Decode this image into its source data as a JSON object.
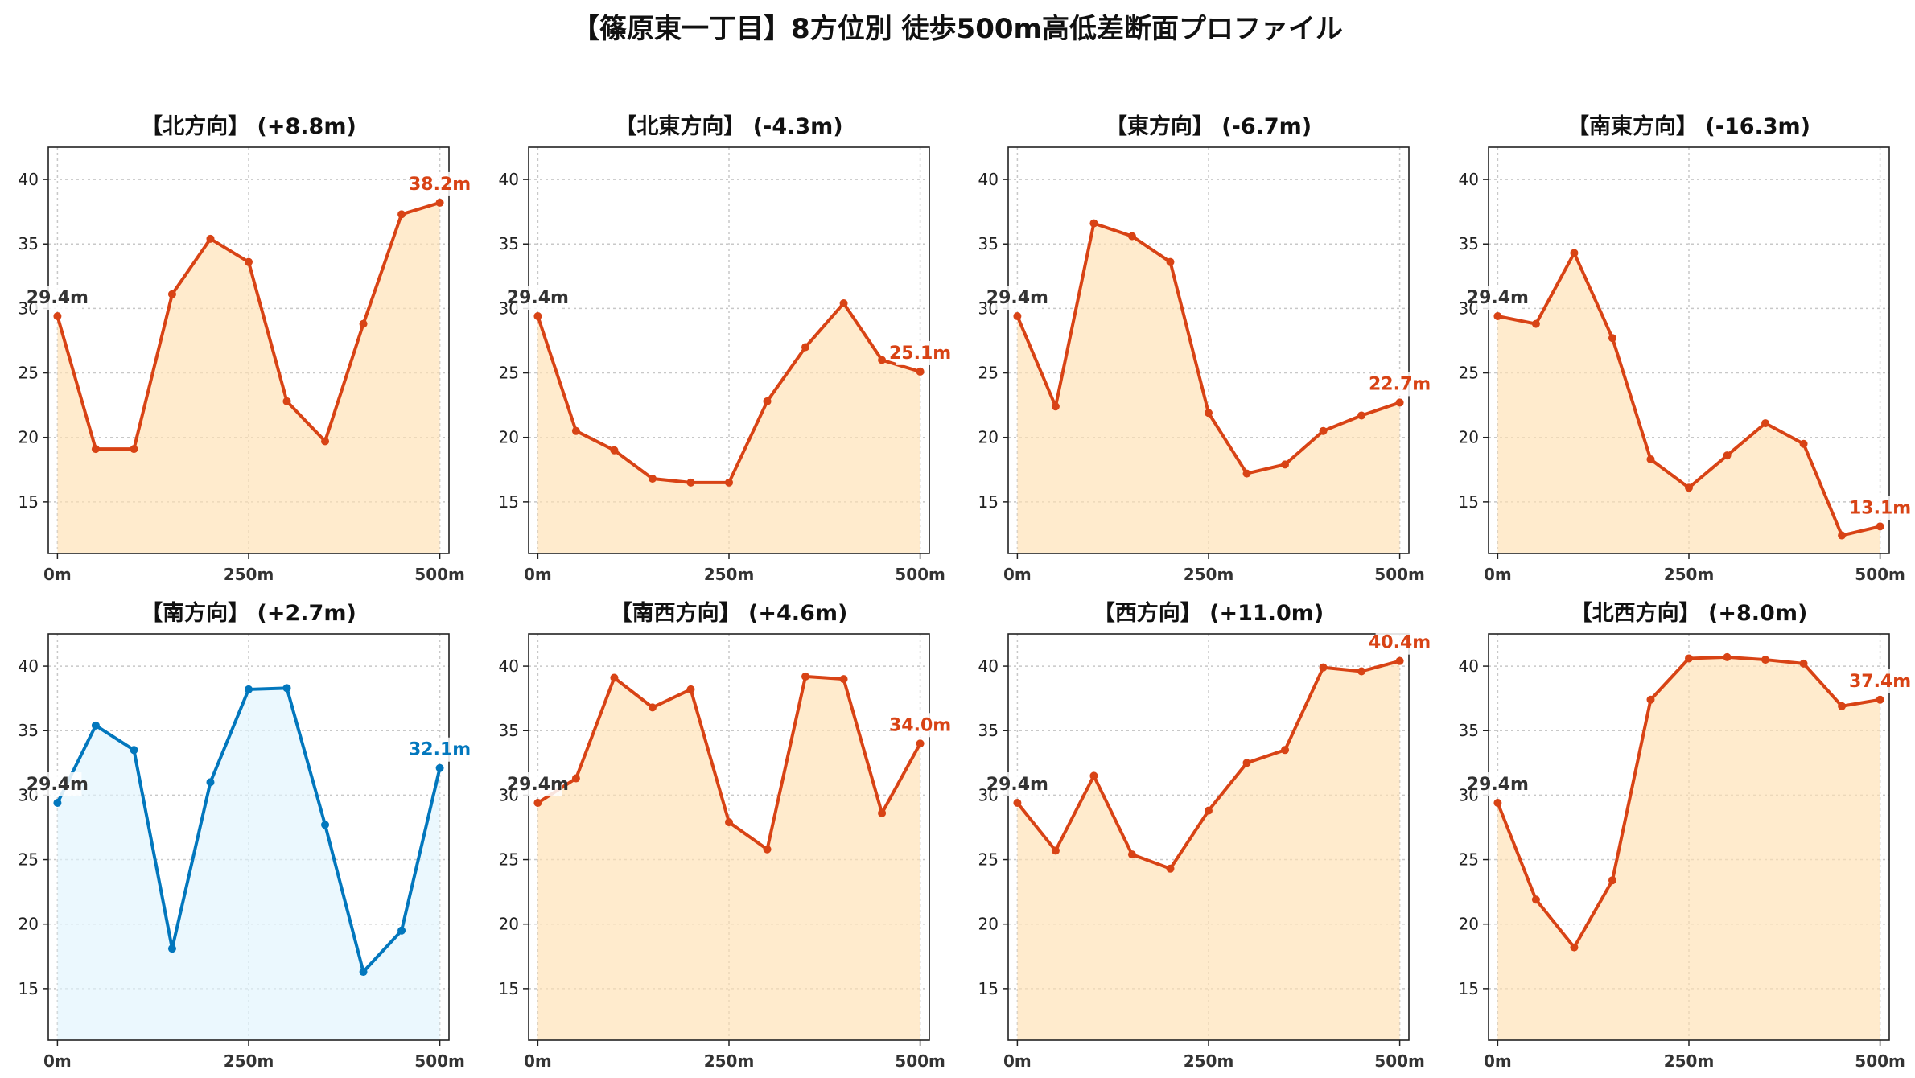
{
  "title": "【篠原東一丁目】8方位別 徒歩500m高低差断面プロファイル",
  "colors": {
    "up": "#d84315",
    "down": "#0277bd",
    "fill_up": "#ffe0b2",
    "fill_down": "#e1f5fe",
    "start": "#333333"
  },
  "chart_data": [
    {
      "type": "area",
      "title": "【北方向】 (+8.8m)",
      "trend": "up",
      "x": [
        0,
        50,
        100,
        150,
        200,
        250,
        300,
        350,
        400,
        450,
        500
      ],
      "y": [
        29.4,
        19.1,
        19.1,
        31.1,
        35.4,
        33.6,
        22.8,
        19.7,
        28.8,
        37.3,
        38.2
      ],
      "start_label": "29.4m",
      "end_label": "38.2m",
      "xticks": [
        "0m",
        "250m",
        "500m"
      ],
      "yticks": [
        15,
        20,
        25,
        30,
        35,
        40
      ],
      "ylim": [
        11,
        42.5
      ],
      "xlim": [
        -12,
        512
      ],
      "grid": true
    },
    {
      "type": "area",
      "title": "【北東方向】 (-4.3m)",
      "trend": "up",
      "x": [
        0,
        50,
        100,
        150,
        200,
        250,
        300,
        350,
        400,
        450,
        500
      ],
      "y": [
        29.4,
        20.5,
        19.0,
        16.8,
        16.5,
        16.5,
        22.8,
        27.0,
        30.4,
        26.0,
        25.1
      ],
      "start_label": "29.4m",
      "end_label": "25.1m",
      "xticks": [
        "0m",
        "250m",
        "500m"
      ],
      "yticks": [
        15,
        20,
        25,
        30,
        35,
        40
      ],
      "ylim": [
        11,
        42.5
      ],
      "xlim": [
        -12,
        512
      ],
      "grid": true
    },
    {
      "type": "area",
      "title": "【東方向】 (-6.7m)",
      "trend": "up",
      "x": [
        0,
        50,
        100,
        150,
        200,
        250,
        300,
        350,
        400,
        450,
        500
      ],
      "y": [
        29.4,
        22.4,
        36.6,
        35.6,
        33.6,
        21.9,
        17.2,
        17.9,
        20.5,
        21.7,
        22.7
      ],
      "start_label": "29.4m",
      "end_label": "22.7m",
      "xticks": [
        "0m",
        "250m",
        "500m"
      ],
      "yticks": [
        15,
        20,
        25,
        30,
        35,
        40
      ],
      "ylim": [
        11,
        42.5
      ],
      "xlim": [
        -12,
        512
      ],
      "grid": true
    },
    {
      "type": "area",
      "title": "【南東方向】 (-16.3m)",
      "trend": "up",
      "x": [
        0,
        50,
        100,
        150,
        200,
        250,
        300,
        350,
        400,
        450,
        500
      ],
      "y": [
        29.4,
        28.8,
        34.3,
        27.7,
        18.3,
        16.1,
        18.6,
        21.1,
        19.5,
        12.4,
        13.1
      ],
      "start_label": "29.4m",
      "end_label": "13.1m",
      "xticks": [
        "0m",
        "250m",
        "500m"
      ],
      "yticks": [
        15,
        20,
        25,
        30,
        35,
        40
      ],
      "ylim": [
        11,
        42.5
      ],
      "xlim": [
        -12,
        512
      ],
      "grid": true
    },
    {
      "type": "area",
      "title": "【南方向】 (+2.7m)",
      "trend": "down",
      "x": [
        0,
        50,
        100,
        150,
        200,
        250,
        300,
        350,
        400,
        450,
        500
      ],
      "y": [
        29.4,
        35.4,
        33.5,
        18.1,
        31.0,
        38.2,
        38.3,
        27.7,
        16.3,
        19.5,
        32.1
      ],
      "start_label": "29.4m",
      "end_label": "32.1m",
      "xticks": [
        "0m",
        "250m",
        "500m"
      ],
      "yticks": [
        15,
        20,
        25,
        30,
        35,
        40
      ],
      "ylim": [
        11,
        42.5
      ],
      "xlim": [
        -12,
        512
      ],
      "grid": true
    },
    {
      "type": "area",
      "title": "【南西方向】 (+4.6m)",
      "trend": "up",
      "x": [
        0,
        50,
        100,
        150,
        200,
        250,
        300,
        350,
        400,
        450,
        500
      ],
      "y": [
        29.4,
        31.3,
        39.1,
        36.8,
        38.2,
        27.9,
        25.8,
        39.2,
        39.0,
        28.6,
        34.0
      ],
      "start_label": "29.4m",
      "end_label": "34.0m",
      "xticks": [
        "0m",
        "250m",
        "500m"
      ],
      "yticks": [
        15,
        20,
        25,
        30,
        35,
        40
      ],
      "ylim": [
        11,
        42.5
      ],
      "xlim": [
        -12,
        512
      ],
      "grid": true
    },
    {
      "type": "area",
      "title": "【西方向】 (+11.0m)",
      "trend": "up",
      "x": [
        0,
        50,
        100,
        150,
        200,
        250,
        300,
        350,
        400,
        450,
        500
      ],
      "y": [
        29.4,
        25.7,
        31.5,
        25.4,
        24.3,
        28.8,
        32.5,
        33.5,
        39.9,
        39.6,
        40.4
      ],
      "start_label": "29.4m",
      "end_label": "40.4m",
      "xticks": [
        "0m",
        "250m",
        "500m"
      ],
      "yticks": [
        15,
        20,
        25,
        30,
        35,
        40
      ],
      "ylim": [
        11,
        42.5
      ],
      "xlim": [
        -12,
        512
      ],
      "grid": true
    },
    {
      "type": "area",
      "title": "【北西方向】 (+8.0m)",
      "trend": "up",
      "x": [
        0,
        50,
        100,
        150,
        200,
        250,
        300,
        350,
        400,
        450,
        500
      ],
      "y": [
        29.4,
        21.9,
        18.2,
        23.4,
        37.4,
        40.6,
        40.7,
        40.5,
        40.2,
        36.9,
        37.4
      ],
      "start_label": "29.4m",
      "end_label": "37.4m",
      "xticks": [
        "0m",
        "250m",
        "500m"
      ],
      "yticks": [
        15,
        20,
        25,
        30,
        35,
        40
      ],
      "ylim": [
        11,
        42.5
      ],
      "xlim": [
        -12,
        512
      ],
      "grid": true
    }
  ]
}
